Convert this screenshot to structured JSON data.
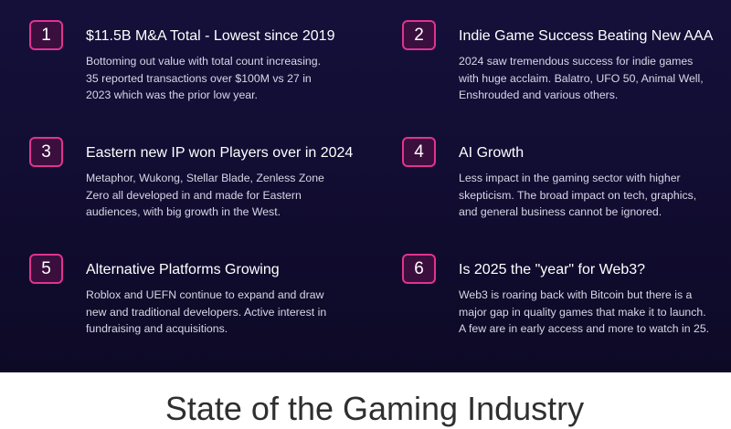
{
  "items": [
    {
      "number": "1",
      "title": "$11.5B M&A Total - Lowest since 2019",
      "description": "Bottoming out value with total count increasing.\n35 reported transactions over $100M vs 27 in\n2023 which was the prior low year."
    },
    {
      "number": "2",
      "title": "Indie Game Success Beating New AAA",
      "description": "2024 saw tremendous success for indie games\nwith huge acclaim. Balatro, UFO 50, Animal Well,\nEnshrouded and various others."
    },
    {
      "number": "3",
      "title": "Eastern new IP won Players over in 2024",
      "description": "Metaphor, Wukong, Stellar Blade, Zenless Zone\nZero all developed in and made for Eastern\naudiences, with big growth in the West."
    },
    {
      "number": "4",
      "title": "AI Growth",
      "description": "Less impact in the gaming sector with higher\nskepticism. The broad impact on tech, graphics,\nand general business cannot be ignored."
    },
    {
      "number": "5",
      "title": "Alternative Platforms Growing",
      "description": "Roblox and UEFN continue to expand and draw\nnew and traditional developers. Active interest in\nfundraising and acquisitions."
    },
    {
      "number": "6",
      "title": "Is 2025 the \"year\" for Web3?",
      "description": "Web3 is roaring back with Bitcoin but there is a\nmajor gap in quality games that make it to launch.\nA few are in early access and more to watch in 25."
    }
  ],
  "footer": {
    "title": "State of the Gaming Industry"
  },
  "colors": {
    "background_dark": "#120d33",
    "number_border": "#e0338f",
    "number_fill": "#3a0f3e",
    "text_light": "#ffffff",
    "footer_text": "#2f2f2f"
  }
}
